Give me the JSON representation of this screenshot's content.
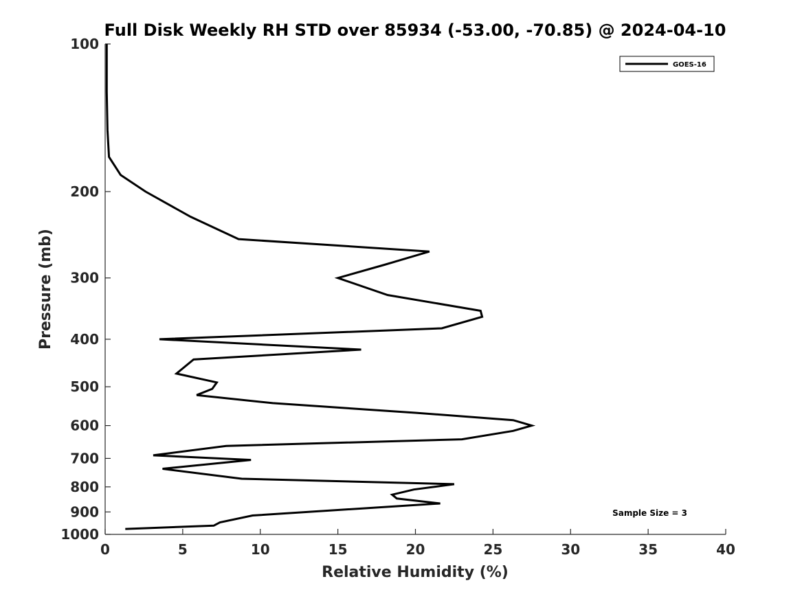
{
  "chart_data": {
    "type": "line",
    "title": "Full Disk Weekly RH STD over 85934 (-53.00, -70.85) @ 2024-04-10",
    "xlabel": "Relative Humidity (%)",
    "ylabel": "Pressure (mb)",
    "xlim": [
      0,
      40
    ],
    "ylim": [
      100,
      1000
    ],
    "yscale": "log",
    "y_reversed": true,
    "xticks": [
      0,
      5,
      10,
      15,
      20,
      25,
      30,
      35,
      40
    ],
    "yticks": [
      100,
      200,
      300,
      400,
      500,
      600,
      700,
      800,
      900,
      1000
    ],
    "grid": false,
    "legend_position": "top-right",
    "annotation": "Sample Size = 3",
    "series": [
      {
        "name": "GOES-16",
        "color": "#000000",
        "points": [
          [
            0.1,
            100
          ],
          [
            0.1,
            125
          ],
          [
            0.15,
            150
          ],
          [
            0.25,
            170
          ],
          [
            1.0,
            185
          ],
          [
            2.6,
            200
          ],
          [
            5.5,
            225
          ],
          [
            8.6,
            250
          ],
          [
            20.9,
            265
          ],
          [
            18.0,
            282
          ],
          [
            15.0,
            300
          ],
          [
            18.2,
            325
          ],
          [
            24.2,
            350
          ],
          [
            24.3,
            360
          ],
          [
            21.7,
            380
          ],
          [
            3.5,
            400
          ],
          [
            16.5,
            420
          ],
          [
            5.7,
            440
          ],
          [
            4.6,
            470
          ],
          [
            7.2,
            490
          ],
          [
            6.9,
            505
          ],
          [
            5.9,
            520
          ],
          [
            10.8,
            540
          ],
          [
            20.0,
            565
          ],
          [
            26.3,
            585
          ],
          [
            27.5,
            600
          ],
          [
            26.3,
            615
          ],
          [
            23.0,
            640
          ],
          [
            7.8,
            660
          ],
          [
            3.1,
            690
          ],
          [
            9.4,
            705
          ],
          [
            3.7,
            735
          ],
          [
            8.8,
            770
          ],
          [
            22.5,
            790
          ],
          [
            19.9,
            810
          ],
          [
            18.5,
            830
          ],
          [
            18.8,
            845
          ],
          [
            21.6,
            865
          ],
          [
            9.5,
            915
          ],
          [
            7.4,
            945
          ],
          [
            7.0,
            960
          ],
          [
            1.3,
            975
          ]
        ]
      }
    ]
  }
}
